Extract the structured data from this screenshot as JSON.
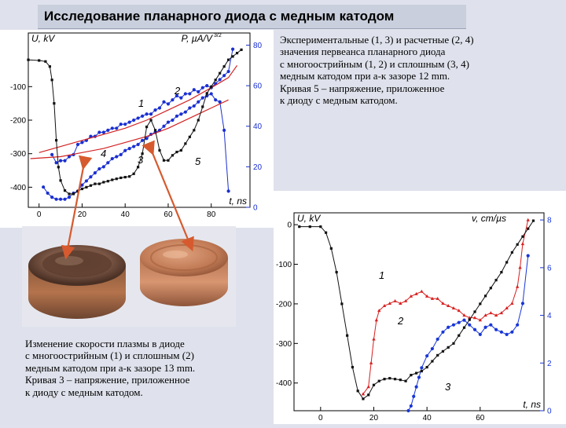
{
  "slide": {
    "title": "Исследование планарного диода с медным катодом"
  },
  "caption_top": {
    "lines": [
      "Экспериментальные (1, 3) и расчетные (2, 4)",
      "значения первеанса планарного диода",
      "с многоострийным (1, 2) и сплошным (3, 4)",
      "медным катодом при а-к зазоре 12 mm.",
      "Кривая 5 – напряжение, приложенное",
      "к диоду с медным катодом."
    ]
  },
  "caption_bottom": {
    "lines": [
      "Изменение скорости плазмы в диоде",
      "с многоострийным (1) и сплошным (2)",
      "медным катодом при а-к зазоре 13 mm.",
      "Кривая 3 – напряжение, приложенное",
      "к диоду с медным катодом."
    ]
  },
  "photo": {
    "subjects": [
      "multi-point copper cathode",
      "solid copper cathode"
    ],
    "colors": {
      "copper": "#b5714e",
      "dark": "#5a3a2c",
      "background": "#e6e7ee"
    }
  },
  "chart_data": [
    {
      "type": "line",
      "ylabel_left": "U, kV",
      "ylabel_right": "P, µA/V",
      "ylabel_right_exp": "3/2",
      "xlabel": "t, ns",
      "x_ticks": [
        "0",
        "20",
        "40",
        "60",
        "80"
      ],
      "y_left_ticks": [
        "-100",
        "-200",
        "-300",
        "-400"
      ],
      "y_right_ticks": [
        "80",
        "60",
        "40",
        "20",
        "0"
      ],
      "xlim": [
        -5,
        98
      ],
      "ylim_left": [
        -460,
        60
      ],
      "ylim_right": [
        0,
        86
      ],
      "series": [
        {
          "name": "1",
          "axis": "right",
          "color": "#1a2fd1",
          "marker": "circle",
          "x": [
            6,
            8,
            10,
            12,
            14,
            16,
            18,
            20,
            22,
            24,
            26,
            28,
            30,
            32,
            34,
            36,
            38,
            40,
            42,
            44,
            46,
            48,
            50,
            52,
            54,
            56,
            58,
            60,
            62,
            64,
            66,
            68,
            70,
            72,
            74,
            76,
            78,
            80,
            82,
            84,
            86,
            88,
            90
          ],
          "y": [
            26,
            22,
            23,
            23,
            25,
            26,
            31,
            32,
            33,
            35,
            35,
            37,
            37,
            38,
            39,
            39,
            41,
            41,
            42,
            43,
            44,
            45,
            46,
            46,
            48,
            49,
            52,
            51,
            53,
            55,
            54,
            56,
            56,
            58,
            57,
            59,
            60,
            59,
            61,
            63,
            65,
            67,
            78
          ]
        },
        {
          "name": "2",
          "axis": "right",
          "color": "#d32222",
          "marker": "line",
          "x": [
            0,
            10,
            20,
            30,
            40,
            50,
            60,
            70,
            80,
            88,
            92
          ],
          "y": [
            27,
            30,
            33,
            36,
            39,
            43,
            48,
            53,
            59,
            64,
            70
          ]
        },
        {
          "name": "3",
          "axis": "right",
          "color": "#1a2fd1",
          "marker": "circle",
          "x": [
            2,
            4,
            6,
            8,
            10,
            12,
            14,
            16,
            18,
            20,
            22,
            24,
            26,
            28,
            30,
            32,
            34,
            36,
            38,
            40,
            42,
            44,
            46,
            48,
            50,
            52,
            54,
            56,
            58,
            60,
            62,
            64,
            66,
            68,
            70,
            72,
            74,
            76,
            78,
            80,
            82,
            84,
            86,
            88
          ],
          "y": [
            10,
            7,
            5,
            4,
            4,
            4,
            5,
            7,
            8,
            11,
            13,
            15,
            17,
            19,
            20,
            22,
            24,
            25,
            26,
            28,
            29,
            30,
            31,
            33,
            34,
            36,
            37,
            38,
            40,
            42,
            43,
            45,
            46,
            47,
            49,
            50,
            52,
            54,
            55,
            56,
            53,
            52,
            38,
            8
          ]
        },
        {
          "name": "4",
          "axis": "right",
          "color": "#d32222",
          "marker": "line",
          "x": [
            -4,
            10,
            20,
            30,
            40,
            50,
            60,
            70,
            80,
            88
          ],
          "y": [
            24,
            25,
            27,
            29,
            32,
            35,
            39,
            44,
            49,
            53
          ]
        },
        {
          "name": "5",
          "axis": "left",
          "color": "#111111",
          "marker": "square",
          "x": [
            -5,
            0,
            3,
            5,
            6,
            7,
            8,
            9,
            10,
            12,
            14,
            16,
            18,
            20,
            22,
            24,
            26,
            28,
            30,
            32,
            34,
            36,
            38,
            40,
            42,
            44,
            46,
            48,
            50,
            52,
            54,
            56,
            58,
            60,
            62,
            64,
            66,
            68,
            70,
            72,
            74,
            76,
            78,
            80,
            82,
            84,
            86,
            88,
            90,
            92,
            94
          ],
          "y": [
            -20,
            -22,
            -25,
            -40,
            -80,
            -150,
            -260,
            -340,
            -380,
            -410,
            -420,
            -420,
            -412,
            -405,
            -400,
            -395,
            -390,
            -390,
            -385,
            -382,
            -378,
            -375,
            -372,
            -370,
            -368,
            -360,
            -340,
            -300,
            -220,
            -200,
            -230,
            -290,
            -320,
            -320,
            -305,
            -295,
            -290,
            -270,
            -250,
            -230,
            -200,
            -160,
            -120,
            -100,
            -80,
            -60,
            -40,
            -20,
            -10,
            0,
            10
          ]
        }
      ],
      "curve_labels": [
        "1",
        "2",
        "3",
        "4",
        "5"
      ]
    },
    {
      "type": "line",
      "ylabel_left": "U, kV",
      "ylabel_right": "v, cm/µs",
      "xlabel": "t, ns",
      "x_ticks": [
        "0",
        "20",
        "40",
        "60"
      ],
      "y_left_ticks": [
        "0",
        "-100",
        "-200",
        "-300",
        "-400"
      ],
      "y_right_ticks": [
        "8",
        "6",
        "4",
        "2",
        "0"
      ],
      "xlim": [
        -10,
        84
      ],
      "ylim_left": [
        -470,
        30
      ],
      "ylim_right": [
        0,
        8.3
      ],
      "series": [
        {
          "name": "1",
          "axis": "right",
          "color": "#d82020",
          "marker": "triangle",
          "x": [
            16,
            18,
            19,
            20,
            21,
            22,
            24,
            26,
            28,
            30,
            32,
            34,
            36,
            38,
            40,
            42,
            44,
            46,
            48,
            50,
            52,
            54,
            56,
            58,
            60,
            62,
            64,
            66,
            68,
            70,
            72,
            74,
            75,
            76,
            78
          ],
          "y": [
            0.7,
            1.0,
            2.0,
            3.0,
            3.8,
            4.2,
            4.4,
            4.5,
            4.6,
            4.5,
            4.6,
            4.8,
            4.9,
            5.0,
            4.8,
            4.7,
            4.7,
            4.5,
            4.4,
            4.3,
            4.2,
            4.0,
            3.9,
            3.9,
            3.8,
            4.0,
            4.1,
            4.0,
            4.1,
            4.3,
            4.5,
            5.2,
            6.0,
            7.0,
            8.0
          ]
        },
        {
          "name": "2",
          "axis": "right",
          "color": "#1836d8",
          "marker": "circle",
          "x": [
            33,
            34,
            35,
            36,
            37,
            38,
            40,
            42,
            44,
            46,
            48,
            50,
            52,
            54,
            56,
            58,
            60,
            62,
            64,
            66,
            68,
            70,
            72,
            74,
            76,
            78
          ],
          "y": [
            0,
            0.2,
            0.6,
            1.0,
            1.4,
            1.8,
            2.3,
            2.6,
            3.0,
            3.3,
            3.5,
            3.6,
            3.7,
            3.8,
            3.6,
            3.4,
            3.2,
            3.5,
            3.6,
            3.4,
            3.3,
            3.2,
            3.3,
            3.6,
            4.5,
            6.5
          ]
        },
        {
          "name": "3",
          "axis": "left",
          "color": "#111111",
          "marker": "square",
          "x": [
            -8,
            -4,
            0,
            2,
            4,
            6,
            8,
            10,
            12,
            14,
            16,
            18,
            20,
            22,
            24,
            26,
            28,
            30,
            32,
            34,
            36,
            38,
            40,
            42,
            44,
            46,
            48,
            50,
            52,
            54,
            56,
            58,
            60,
            62,
            64,
            66,
            68,
            70,
            72,
            74,
            76,
            78,
            80
          ],
          "y": [
            -5,
            -5,
            -5,
            -20,
            -60,
            -120,
            -200,
            -280,
            -360,
            -420,
            -440,
            -430,
            -405,
            -395,
            -390,
            -388,
            -390,
            -392,
            -395,
            -380,
            -375,
            -370,
            -360,
            -345,
            -330,
            -320,
            -310,
            -300,
            -280,
            -260,
            -240,
            -220,
            -200,
            -180,
            -160,
            -140,
            -120,
            -95,
            -70,
            -50,
            -30,
            -10,
            10
          ]
        }
      ],
      "curve_labels": [
        "1",
        "2",
        "3"
      ]
    }
  ]
}
